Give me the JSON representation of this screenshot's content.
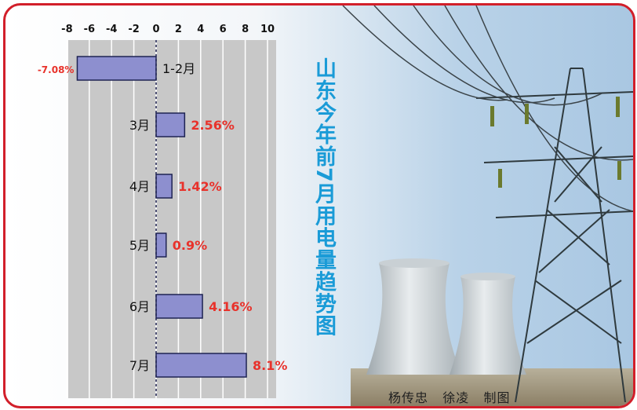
{
  "title": "山东今年前7月用电量趋势图",
  "credit": "杨传忠   徐凌   制图",
  "colors": {
    "frame": "#d21f2a",
    "bar": "#8d8fcf",
    "bar_stroke": "#1e2352",
    "label": "#e8322b",
    "title": "#1a9bd7"
  },
  "chart_data": {
    "type": "bar",
    "orientation": "horizontal",
    "title": "山东今年前7月用电量趋势图",
    "categories": [
      "1-2月",
      "3月",
      "4月",
      "5月",
      "6月",
      "7月"
    ],
    "values": [
      -7.08,
      2.56,
      1.42,
      0.9,
      4.16,
      8.1
    ],
    "data_labels": [
      "-7.08%",
      "2.56%",
      "1.42%",
      "0.9%",
      "4.16%",
      "8.1%"
    ],
    "xlim": [
      -10,
      10
    ],
    "xticks": [
      -8,
      -6,
      -4,
      -2,
      0,
      2,
      4,
      6,
      8,
      10
    ],
    "grid": true
  }
}
